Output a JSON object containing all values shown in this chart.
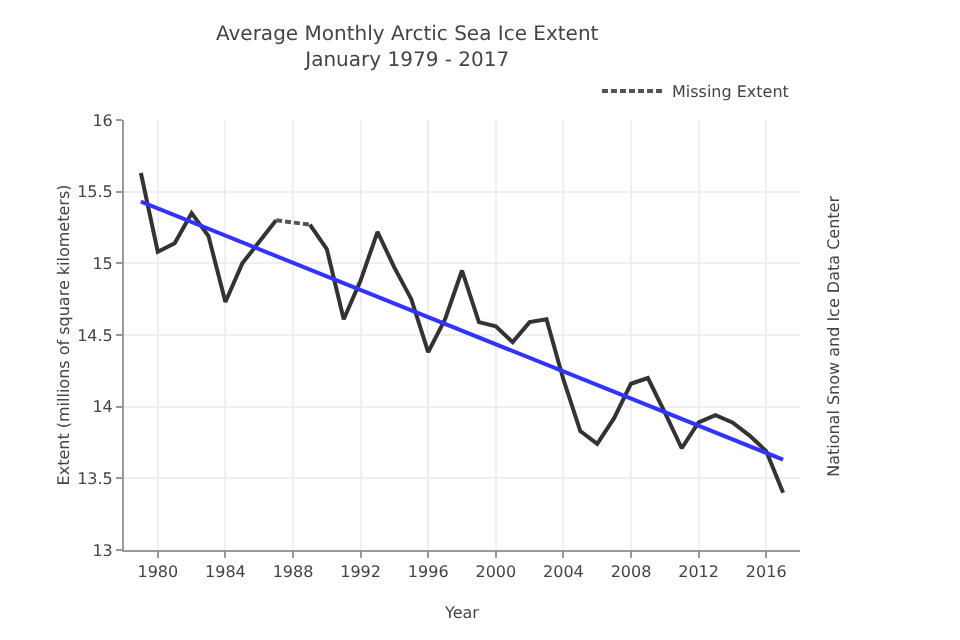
{
  "chart_data": {
    "type": "line",
    "title": "Average Monthly Arctic Sea Ice Extent",
    "subtitle": "January 1979 - 2017",
    "xlabel": "Year",
    "ylabel": "Extent (millions of square kilometers)",
    "annotations": [
      "National Snow and Ice Data Center"
    ],
    "series": [
      {
        "color": "#333333",
        "line_style": "solid",
        "x": [
          1979,
          1980,
          1981,
          1982,
          1983,
          1984,
          1985,
          1986,
          1987,
          1988,
          1989,
          1990,
          1991,
          1992,
          1993,
          1994,
          1995,
          1996,
          1997,
          1998,
          1999,
          2000,
          2001,
          2002,
          2003,
          2004,
          2005,
          2006,
          2007,
          2008,
          2009,
          2010,
          2011,
          2012,
          2013,
          2014,
          2015,
          2016,
          2017
        ],
        "values": [
          15.63,
          15.08,
          15.14,
          15.35,
          15.19,
          14.73,
          15.0,
          15.15,
          15.3,
          null,
          15.27,
          15.1,
          14.61,
          14.88,
          15.22,
          14.97,
          14.75,
          14.38,
          14.61,
          14.95,
          14.59,
          14.56,
          14.45,
          14.59,
          14.61,
          14.19,
          13.83,
          13.74,
          13.92,
          14.16,
          14.2,
          13.96,
          13.71,
          13.89,
          13.94,
          13.89,
          13.8,
          13.69,
          13.4
        ]
      },
      {
        "name": "Missing Extent",
        "color": "#555555",
        "line_style": "dotted",
        "x": [
          1987,
          1989
        ],
        "values": [
          15.3,
          15.27
        ]
      },
      {
        "color": "#3333ff",
        "line_style": "solid",
        "x": [
          1979,
          2017
        ],
        "values": [
          15.43,
          13.63
        ]
      }
    ],
    "xlim": [
      1978,
      2018
    ],
    "xticks": [
      1980,
      1984,
      1988,
      1992,
      1996,
      2000,
      2004,
      2008,
      2012,
      2016
    ],
    "ylim": [
      13,
      16
    ],
    "yticks": [
      13,
      13.5,
      14,
      14.5,
      15,
      15.5,
      16
    ],
    "grid": true,
    "legend": "top right",
    "marker": "none"
  }
}
